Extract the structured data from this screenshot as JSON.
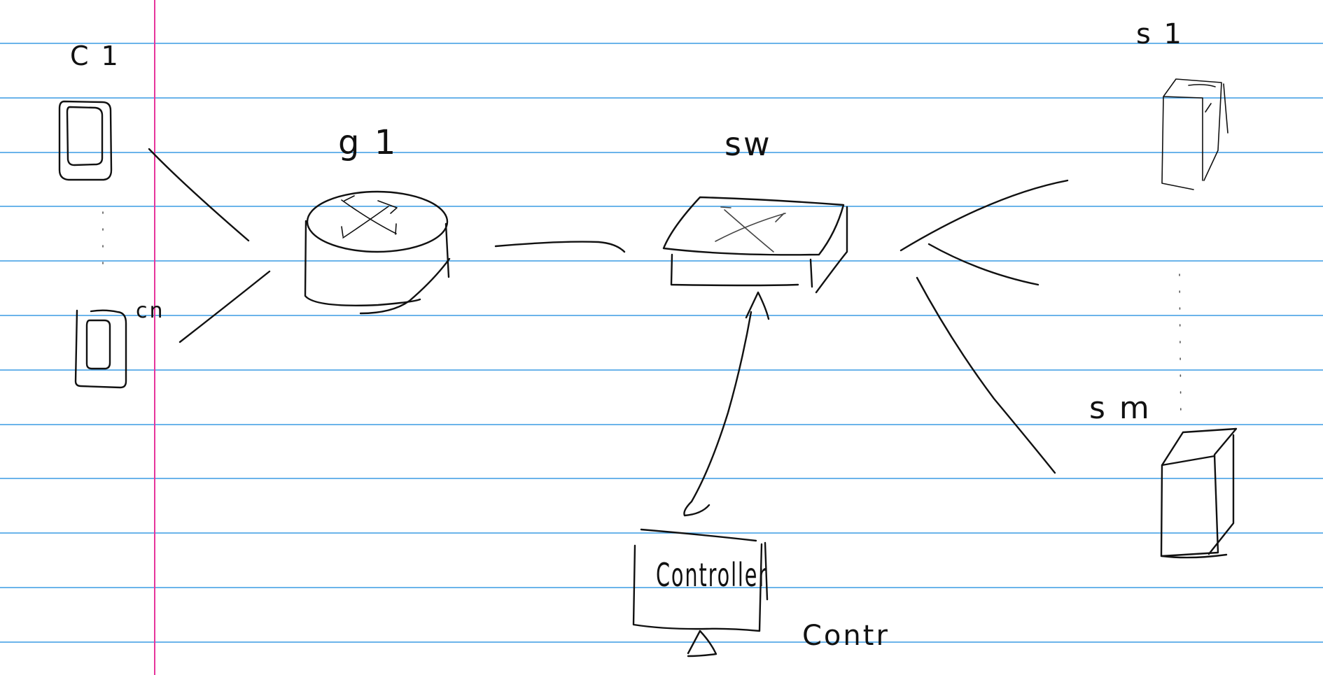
{
  "colors": {
    "paper": "#ffffff",
    "rule_line": "#3a9be3",
    "margin_line": "#e6359b",
    "ink": "#111111"
  },
  "labels": {
    "client_first": "C 1",
    "client_last": "cn",
    "gateway": "g 1",
    "switch": "sw",
    "server_first": "s 1",
    "server_last": "s m",
    "controller": "Controller",
    "controller_side": "Contr"
  }
}
